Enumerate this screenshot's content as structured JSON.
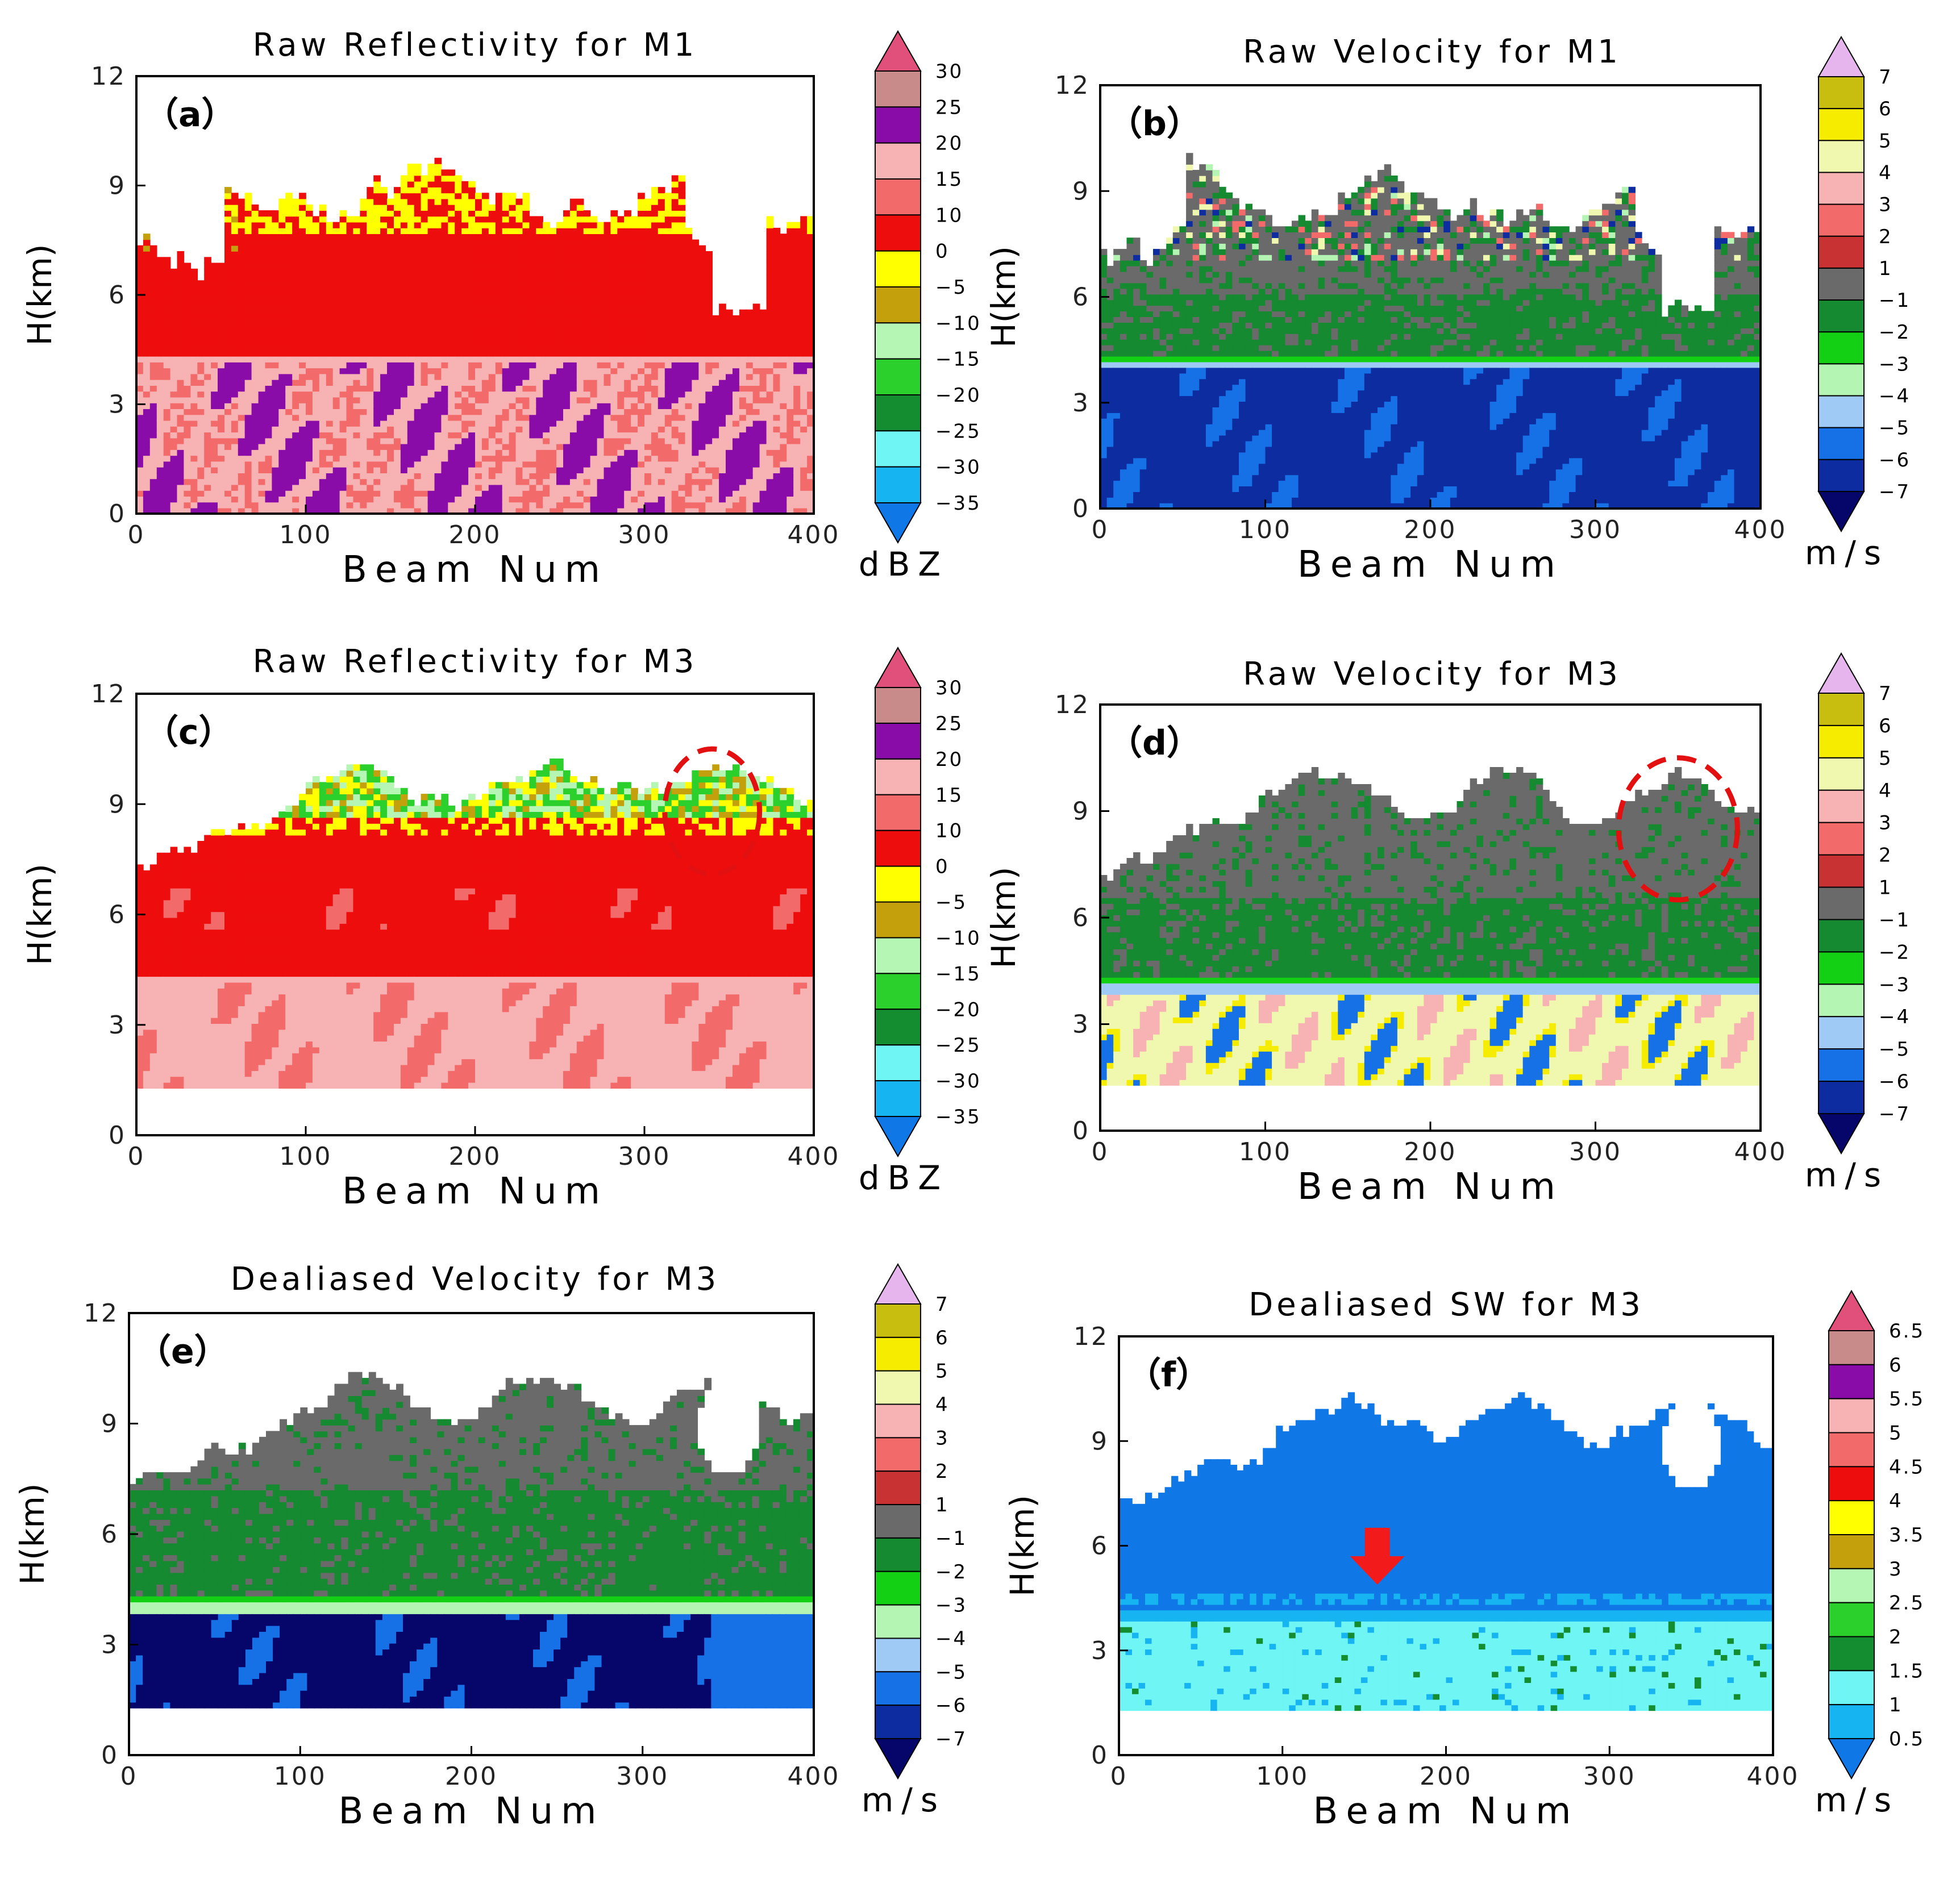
{
  "figure": {
    "panel_count": 6
  },
  "chart_data": [
    {
      "type": "heatmap",
      "id": "a",
      "panel_label": "（a）",
      "title": "Raw Reflectivity for M1",
      "xlabel": "Beam Num",
      "ylabel": "H(km)",
      "xlim": [
        0,
        400
      ],
      "ylim": [
        0,
        12
      ],
      "xticks": [
        "0",
        "100",
        "200",
        "300",
        "400"
      ],
      "yticks": [
        "0",
        "3",
        "6",
        "9",
        "12"
      ],
      "colorbar": {
        "unit": "dBZ",
        "labels": [
          "30",
          "25",
          "20",
          "15",
          "10",
          "0",
          "−5",
          "−10",
          "−15",
          "−20",
          "−25",
          "−30",
          "−35"
        ],
        "colors": [
          "#e0507a",
          "#c98a8a",
          "#8a0ca8",
          "#f7b3b3",
          "#f26a6a",
          "#ee0d0d",
          "#ffff00",
          "#c3a00c",
          "#b5f6b5",
          "#2cd02c",
          "#148c30",
          "#6ff5f3",
          "#16b5f2",
          "#1078e6"
        ]
      },
      "field": {
        "kind": "reflectivity",
        "melting_layer_km": 4.2,
        "echo_top_km": 8.2,
        "data_bottom_km": 0
      }
    },
    {
      "type": "heatmap",
      "id": "b",
      "panel_label": "（b）",
      "title": "Raw Velocity for M1",
      "xlabel": "Beam Num",
      "ylabel": "H(km)",
      "xlim": [
        0,
        400
      ],
      "ylim": [
        0,
        12
      ],
      "xticks": [
        "0",
        "100",
        "200",
        "300",
        "400"
      ],
      "yticks": [
        "0",
        "3",
        "6",
        "9",
        "12"
      ],
      "colorbar": {
        "unit": "m/s",
        "labels": [
          "7",
          "6",
          "5",
          "4",
          "3",
          "2",
          "1",
          "−1",
          "−2",
          "−3",
          "−4",
          "−5",
          "−6",
          "−7"
        ],
        "colors": [
          "#e6b5ee",
          "#c8be10",
          "#f6ec00",
          "#f0f8b0",
          "#f7b3b3",
          "#f26a6a",
          "#c83232",
          "#6a6a6a",
          "#158a30",
          "#14d014",
          "#b4f5b4",
          "#9fcaf6",
          "#1670e6",
          "#0c2ca0",
          "#06066a"
        ]
      },
      "field": {
        "kind": "velocity_m1",
        "melting_layer_km": 4.0,
        "echo_top_km": 7.8,
        "data_bottom_km": 0
      }
    },
    {
      "type": "heatmap",
      "id": "c",
      "panel_label": "（c）",
      "title": "Raw Reflectivity for M3",
      "xlabel": "Beam Num",
      "ylabel": "H(km)",
      "xlim": [
        0,
        400
      ],
      "ylim": [
        0,
        12
      ],
      "xticks": [
        "0",
        "100",
        "200",
        "300",
        "400"
      ],
      "yticks": [
        "0",
        "3",
        "6",
        "9",
        "12"
      ],
      "colorbar": {
        "unit": "dBZ",
        "labels": [
          "30",
          "25",
          "20",
          "15",
          "10",
          "0",
          "−5",
          "−10",
          "−15",
          "−20",
          "−25",
          "−30",
          "−35"
        ],
        "colors": [
          "#e0507a",
          "#c98a8a",
          "#8a0ca8",
          "#f7b3b3",
          "#f26a6a",
          "#ee0d0d",
          "#ffff00",
          "#c3a00c",
          "#b5f6b5",
          "#2cd02c",
          "#148c30",
          "#6ff5f3",
          "#16b5f2",
          "#1078e6"
        ]
      },
      "field": {
        "kind": "reflectivity_m3",
        "melting_layer_km": 4.1,
        "echo_top_km": 9.0,
        "data_bottom_km": 1.3
      },
      "annotations": [
        {
          "kind": "ellipse",
          "x": 340,
          "y": 8.8,
          "rx": 28,
          "ry": 1.7
        }
      ]
    },
    {
      "type": "heatmap",
      "id": "d",
      "panel_label": "（d）",
      "title": "Raw Velocity for M3",
      "xlabel": "Beam Num",
      "ylabel": "H(km)",
      "xlim": [
        0,
        400
      ],
      "ylim": [
        0,
        12
      ],
      "xticks": [
        "0",
        "100",
        "200",
        "300",
        "400"
      ],
      "yticks": [
        "0",
        "3",
        "6",
        "9",
        "12"
      ],
      "colorbar": {
        "unit": "m/s",
        "labels": [
          "7",
          "6",
          "5",
          "4",
          "3",
          "2",
          "1",
          "−1",
          "−2",
          "−3",
          "−4",
          "−5",
          "−6",
          "−7"
        ],
        "colors": [
          "#e6b5ee",
          "#c8be10",
          "#f6ec00",
          "#f0f8b0",
          "#f7b3b3",
          "#f26a6a",
          "#c83232",
          "#6a6a6a",
          "#158a30",
          "#14d014",
          "#b4f5b4",
          "#9fcaf6",
          "#1670e6",
          "#0c2ca0",
          "#06066a"
        ]
      },
      "field": {
        "kind": "velocity_m3",
        "melting_layer_km": 4.0,
        "echo_top_km": 9.0,
        "data_bottom_km": 1.3
      },
      "annotations": [
        {
          "kind": "ellipse",
          "x": 350,
          "y": 8.5,
          "rx": 36,
          "ry": 2.0
        }
      ]
    },
    {
      "type": "heatmap",
      "id": "e",
      "panel_label": "（e）",
      "title": "Dealiased Velocity for M3",
      "xlabel": "Beam Num",
      "ylabel": "H(km)",
      "xlim": [
        0,
        400
      ],
      "ylim": [
        0,
        12
      ],
      "xticks": [
        "0",
        "100",
        "200",
        "300",
        "400"
      ],
      "yticks": [
        "0",
        "3",
        "6",
        "9",
        "12"
      ],
      "colorbar": {
        "unit": "m/s",
        "labels": [
          "7",
          "6",
          "5",
          "4",
          "3",
          "2",
          "1",
          "−1",
          "−2",
          "−3",
          "−4",
          "−5",
          "−6",
          "−7"
        ],
        "colors": [
          "#e6b5ee",
          "#c8be10",
          "#f6ec00",
          "#f0f8b0",
          "#f7b3b3",
          "#f26a6a",
          "#c83232",
          "#6a6a6a",
          "#158a30",
          "#14d014",
          "#b4f5b4",
          "#9fcaf6",
          "#1670e6",
          "#0c2ca0",
          "#06066a"
        ]
      },
      "field": {
        "kind": "velocity_dealiased",
        "melting_layer_km": 4.0,
        "echo_top_km": 9.0,
        "data_bottom_km": 1.3
      }
    },
    {
      "type": "heatmap",
      "id": "f",
      "panel_label": "（f）",
      "title": "Dealiased SW for M3",
      "xlabel": "Beam Num",
      "ylabel": "H(km)",
      "xlim": [
        0,
        400
      ],
      "ylim": [
        0,
        12
      ],
      "xticks": [
        "0",
        "100",
        "200",
        "300",
        "400"
      ],
      "yticks": [
        "0",
        "3",
        "6",
        "9",
        "12"
      ],
      "colorbar": {
        "unit": "m/s",
        "labels": [
          "6.5",
          "6",
          "5.5",
          "5",
          "4.5",
          "4",
          "3.5",
          "3",
          "2.5",
          "2",
          "1.5",
          "1",
          "0.5"
        ],
        "colors": [
          "#e0507a",
          "#c98a8a",
          "#8a0ca8",
          "#f7b3b3",
          "#f26a6a",
          "#ee0d0d",
          "#ffff00",
          "#c3a00c",
          "#b5f6b5",
          "#2cd02c",
          "#148c30",
          "#6ff5f3",
          "#16b5f2",
          "#1078e6"
        ]
      },
      "field": {
        "kind": "spectrum_width",
        "melting_layer_km": 4.0,
        "echo_top_km": 9.0,
        "data_bottom_km": 1.3
      },
      "annotations": [
        {
          "kind": "arrow",
          "x": 158,
          "y": 5.7
        }
      ]
    }
  ]
}
